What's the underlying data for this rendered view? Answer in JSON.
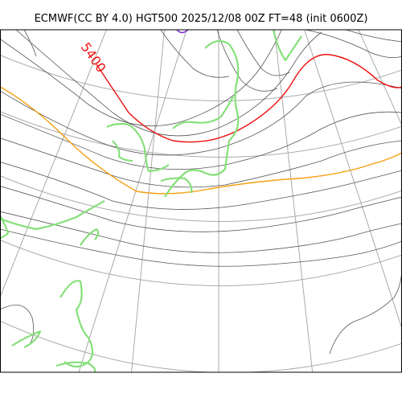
{
  "map": {
    "title": "ECMWF(CC BY 4.0) HGT500 2025/12/08 00Z FT=48 (init 0600Z)",
    "contour_label": "5400",
    "highlight_contours": [
      {
        "label": "5400",
        "color": "#ee1111"
      },
      {
        "label": "",
        "color": "#f5a011"
      }
    ],
    "colors": {
      "contour": "#555555",
      "graticule": "#aaaaaa",
      "coastline": "#86e07a",
      "other_coast": "#444444",
      "frame": "#000000"
    }
  }
}
